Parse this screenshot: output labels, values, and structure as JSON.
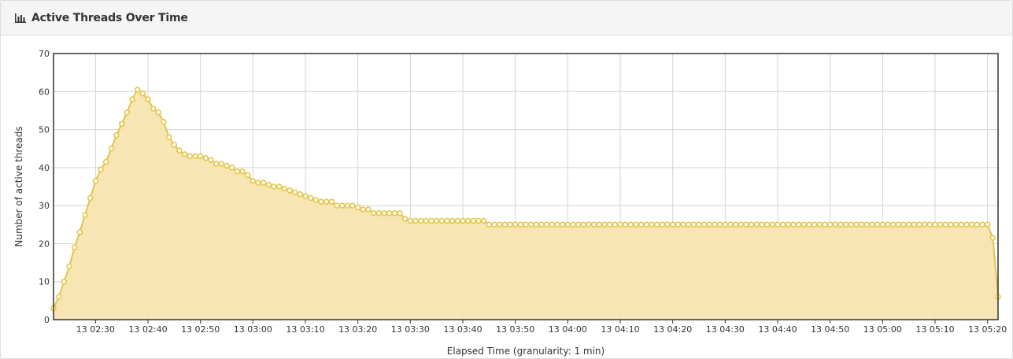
{
  "header": {
    "title": "Active Threads Over Time",
    "icon": "bar-chart-icon"
  },
  "chart_data": {
    "type": "line",
    "title": "Active Threads Over Time",
    "xlabel": "Elapsed Time (granularity: 1 min)",
    "ylabel": "Number of active threads",
    "x_start": "13 02:22",
    "x_end": "13 05:21",
    "granularity_minutes": 1,
    "ylim": [
      0,
      70
    ],
    "yticks": [
      0,
      10,
      20,
      30,
      40,
      50,
      60,
      70
    ],
    "xticks": [
      "13 02:30",
      "13 02:40",
      "13 02:50",
      "13 03:00",
      "13 03:10",
      "13 03:20",
      "13 03:30",
      "13 03:40",
      "13 03:50",
      "13 04:00",
      "13 04:10",
      "13 04:20",
      "13 04:30",
      "13 04:40",
      "13 04:50",
      "13 05:00",
      "13 05:10",
      "13 05:20"
    ],
    "grid": true,
    "fill": true,
    "colors": {
      "line": "#e3c44e",
      "fill": "#f8e4b0",
      "marker_fill": "#fffbe3",
      "grid": "#d4d4d4",
      "axis": "#333333"
    },
    "series": [
      {
        "values": [
          3,
          6,
          10,
          14,
          19,
          23,
          27.5,
          32,
          36.5,
          39.5,
          41.5,
          45,
          48.5,
          51.5,
          54.5,
          58,
          60.5,
          59.5,
          58,
          55.5,
          54.5,
          52,
          48,
          46,
          44.5,
          43.5,
          43,
          43,
          43,
          42.5,
          42,
          41,
          41,
          40.5,
          40,
          39,
          39,
          38,
          36.5,
          36,
          36,
          35.5,
          35,
          35,
          34.5,
          34,
          33.5,
          33,
          32.5,
          32,
          31.5,
          31,
          31,
          31,
          30,
          30,
          30,
          30,
          29.5,
          29,
          29,
          28,
          28,
          28,
          28,
          28,
          28,
          26.5,
          26,
          26,
          26,
          26,
          26,
          26,
          26,
          26,
          26,
          26,
          26,
          26,
          26,
          26,
          26,
          25,
          25,
          25,
          25,
          25,
          25,
          25,
          25,
          25,
          25,
          25,
          25,
          25,
          25,
          25,
          25,
          25,
          25,
          25,
          25,
          25,
          25,
          25,
          25,
          25,
          25,
          25,
          25,
          25,
          25,
          25,
          25,
          25,
          25,
          25,
          25,
          25,
          25,
          25,
          25,
          25,
          25,
          25,
          25,
          25,
          25,
          25,
          25,
          25,
          25,
          25,
          25,
          25,
          25,
          25,
          25,
          25,
          25,
          25,
          25,
          25,
          25,
          25,
          25,
          25,
          25,
          25,
          25,
          25,
          25,
          25,
          25,
          25,
          25,
          25,
          25,
          25,
          25,
          25,
          25,
          25,
          25,
          25,
          25,
          25,
          25,
          25,
          25,
          25,
          25,
          25,
          25,
          25,
          25,
          25,
          25,
          21.5,
          6
        ]
      }
    ]
  }
}
